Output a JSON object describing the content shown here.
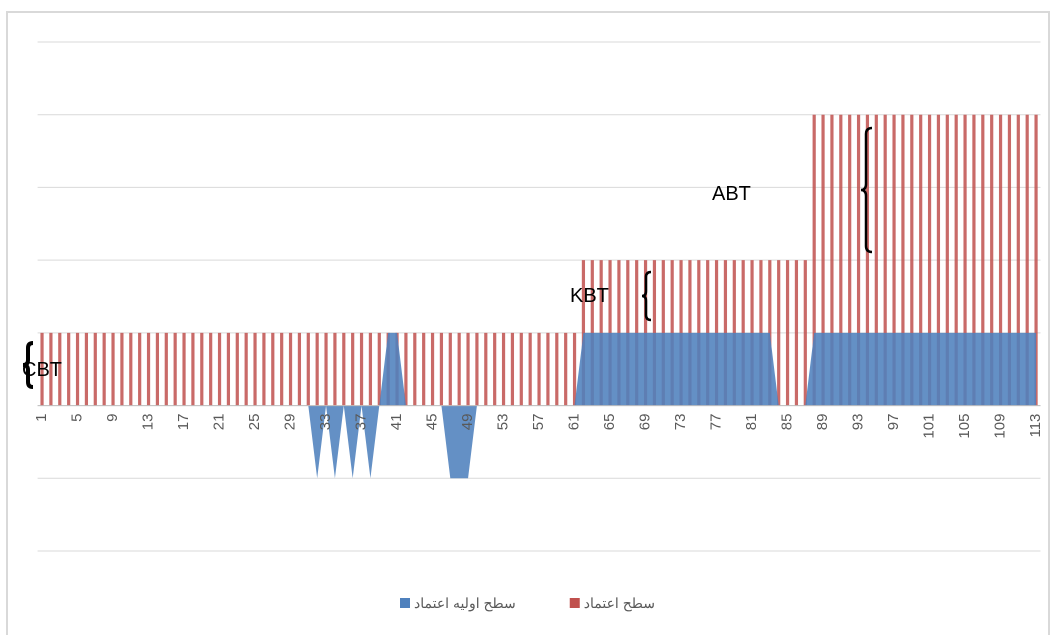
{
  "chart_data": {
    "type": "bar",
    "categories": [
      1,
      null,
      null,
      null,
      5,
      null,
      null,
      null,
      9,
      null,
      null,
      null,
      13,
      null,
      null,
      null,
      17,
      null,
      null,
      null,
      21,
      null,
      null,
      null,
      25,
      null,
      null,
      null,
      29,
      null,
      null,
      null,
      33,
      null,
      null,
      null,
      37,
      null,
      null,
      null,
      41,
      null,
      null,
      null,
      45,
      null,
      null,
      null,
      49,
      null,
      null,
      null,
      53,
      null,
      null,
      null,
      57,
      null,
      null,
      null,
      61,
      null,
      null,
      null,
      65,
      null,
      null,
      null,
      69,
      null,
      null,
      null,
      73,
      null,
      null,
      null,
      77,
      null,
      null,
      null,
      81,
      null,
      null,
      null,
      85,
      null,
      null,
      null,
      89,
      null,
      null,
      null,
      93,
      null,
      null,
      null,
      97,
      null,
      null,
      null,
      101,
      null,
      null,
      null,
      105,
      null,
      null,
      null,
      109,
      null,
      null,
      null,
      113
    ],
    "series": [
      {
        "name": "سطح اعتماد",
        "color": "#c0504d",
        "type": "bar",
        "values": [
          1,
          1,
          1,
          1,
          1,
          1,
          1,
          1,
          1,
          1,
          1,
          1,
          1,
          1,
          1,
          1,
          1,
          1,
          1,
          1,
          1,
          1,
          1,
          1,
          1,
          1,
          1,
          1,
          1,
          1,
          1,
          1,
          1,
          1,
          1,
          1,
          1,
          1,
          1,
          1,
          1,
          1,
          1,
          1,
          1,
          1,
          1,
          1,
          1,
          1,
          1,
          1,
          1,
          1,
          1,
          1,
          1,
          1,
          1,
          1,
          1,
          2,
          2,
          2,
          2,
          2,
          2,
          2,
          2,
          2,
          2,
          2,
          2,
          2,
          2,
          2,
          2,
          2,
          2,
          2,
          2,
          2,
          2,
          2,
          2,
          2,
          2,
          4,
          4,
          4,
          4,
          4,
          4,
          4,
          4,
          4,
          4,
          4,
          4,
          4,
          4,
          4,
          4,
          4,
          4,
          4,
          4,
          4,
          4,
          4,
          4,
          4,
          4
        ]
      },
      {
        "name": "سطح اولیه اعتماد",
        "color": "#4f81bd",
        "type": "area",
        "values": [
          0,
          0,
          0,
          0,
          0,
          0,
          0,
          0,
          0,
          0,
          0,
          0,
          0,
          0,
          0,
          0,
          0,
          0,
          0,
          0,
          0,
          0,
          0,
          0,
          0,
          0,
          0,
          0,
          0,
          0,
          0,
          -1,
          0,
          -1,
          0,
          -1,
          0,
          -1,
          0,
          1,
          1,
          0,
          0,
          0,
          0,
          0,
          -1,
          -1,
          -1,
          0,
          0,
          0,
          0,
          0,
          0,
          0,
          0,
          0,
          0,
          0,
          0,
          1,
          1,
          1,
          1,
          1,
          1,
          1,
          1,
          1,
          1,
          1,
          1,
          1,
          1,
          1,
          1,
          1,
          1,
          1,
          1,
          1,
          1,
          0,
          0,
          0,
          0,
          1,
          1,
          1,
          1,
          1,
          1,
          1,
          1,
          1,
          1,
          1,
          1,
          1,
          1,
          1,
          1,
          1,
          1,
          1,
          1,
          1,
          1,
          1,
          1,
          1,
          1
        ]
      }
    ],
    "ylim": [
      -2,
      5
    ],
    "yticks": [
      -2,
      -1,
      0,
      1,
      2,
      3,
      4,
      5
    ],
    "grid": true,
    "annotations": [
      "ABT",
      "KBT",
      "CBT"
    ]
  }
}
